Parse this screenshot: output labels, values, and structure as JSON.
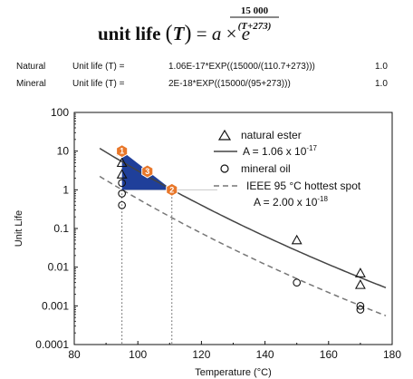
{
  "formula": {
    "lhs": "unit life",
    "var": "T",
    "rhs_a": "a",
    "times": "×",
    "base": "e",
    "num": "15 000",
    "den": "(T+273)"
  },
  "rows": [
    {
      "name": "Natural",
      "label": "Unit life (T) =",
      "expr": "1.06E-17*EXP((15000/(110.7+273)))",
      "value": "1.0"
    },
    {
      "name": "Mineral",
      "label": "Unit life (T) =",
      "expr": "2E-18*EXP((15000/(95+273)))",
      "value": "1.0"
    }
  ],
  "chart_data": {
    "type": "scatter",
    "xlabel": "Temperature (°C)",
    "ylabel": "Unit Life",
    "xlim": [
      80,
      180
    ],
    "ylim": [
      0.0001,
      100
    ],
    "yscale": "log",
    "xticks": [
      "80",
      "100",
      "120",
      "140",
      "160",
      "180"
    ],
    "yticks": [
      "0.0001",
      "0.001",
      "0.01",
      "0.1",
      "1",
      "10",
      "100"
    ],
    "series": [
      {
        "name": "natural ester",
        "marker": "triangle",
        "points": [
          [
            95,
            10
          ],
          [
            95,
            5
          ],
          [
            95,
            2.5
          ],
          [
            150,
            0.05
          ],
          [
            170,
            0.007
          ],
          [
            170,
            0.0035
          ]
        ]
      },
      {
        "name": "mineral oil",
        "marker": "circle",
        "points": [
          [
            95,
            1.5
          ],
          [
            95,
            0.8
          ],
          [
            95,
            0.4
          ],
          [
            150,
            0.004
          ],
          [
            170,
            0.001
          ],
          [
            170,
            0.0008
          ]
        ]
      }
    ],
    "curves": [
      {
        "a": 1.06e-17,
        "style": "solid",
        "legend_prefix": "A = 1.06 x 10",
        "legend_exp": "-17"
      },
      {
        "a": 2e-18,
        "style": "dashed",
        "legend_line1": "IEEE 95 °C hottest spot",
        "legend_prefix": "A = 2.00 x 10",
        "legend_exp": "-18"
      }
    ],
    "reference": {
      "y": 1,
      "x_from": 95,
      "x_to": 125
    },
    "verticals": [
      95,
      110.7
    ],
    "shaded_triangle": [
      [
        95,
        10
      ],
      [
        95,
        1
      ],
      [
        110.7,
        1
      ]
    ],
    "markers": [
      {
        "label": "1",
        "x": 95,
        "y": 10
      },
      {
        "label": "2",
        "x": 110.7,
        "y": 1
      },
      {
        "label": "3",
        "x": 103,
        "y": 3
      }
    ],
    "colors": {
      "fill": "#1f3f9a",
      "marker": "#e8772a",
      "line": "#444444",
      "dashed": "#777777"
    },
    "legend_position": "top-right"
  }
}
